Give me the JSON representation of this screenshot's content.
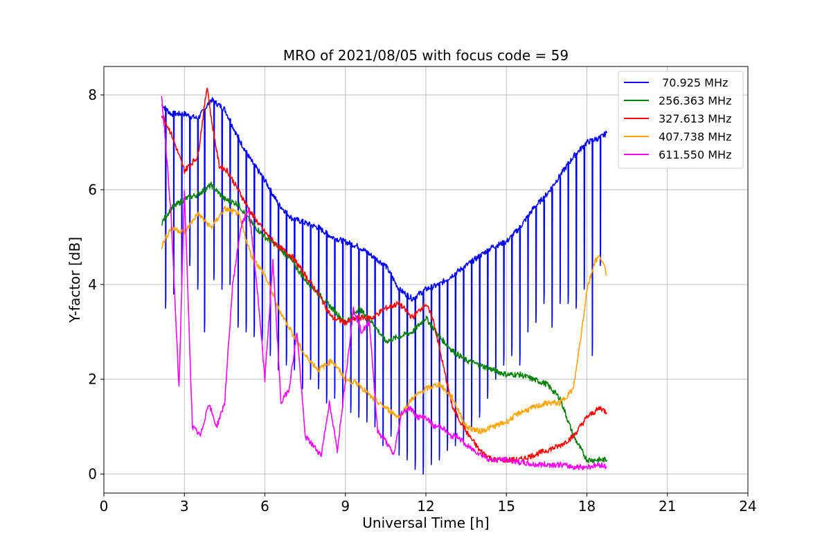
{
  "chart_data": {
    "type": "line",
    "title": "MRO of 2021/08/05 with focus code = 59",
    "xlabel": "Universal Time [h]",
    "ylabel": "Y-factor [dB]",
    "xlim": [
      0,
      24
    ],
    "ylim": [
      -0.4,
      8.6
    ],
    "xticks": [
      0,
      3,
      6,
      9,
      12,
      15,
      18,
      21,
      24
    ],
    "yticks": [
      0,
      2,
      4,
      6,
      8
    ],
    "grid": true,
    "legend_position": "top-right",
    "series": [
      {
        "name": " 70.925 MHz",
        "color": "#0000ff",
        "x": [
          2.15,
          2.5,
          3.0,
          3.5,
          4.0,
          4.5,
          5.0,
          5.5,
          6.0,
          6.5,
          7.0,
          7.5,
          8.0,
          8.5,
          9.0,
          9.5,
          10.0,
          10.5,
          11.0,
          11.5,
          12.0,
          12.5,
          13.0,
          13.5,
          14.0,
          14.5,
          15.0,
          15.5,
          16.0,
          16.5,
          17.0,
          17.5,
          18.0,
          18.5,
          18.75
        ],
        "y": [
          7.8,
          7.6,
          7.6,
          7.5,
          7.9,
          7.7,
          7.1,
          6.6,
          6.2,
          5.7,
          5.4,
          5.3,
          5.2,
          5.0,
          4.9,
          4.8,
          4.6,
          4.4,
          3.9,
          3.7,
          3.9,
          4.0,
          4.2,
          4.4,
          4.6,
          4.8,
          4.9,
          5.2,
          5.6,
          5.9,
          6.3,
          6.7,
          7.0,
          7.1,
          7.2
        ],
        "dips": [
          [
            2.3,
            3.5
          ],
          [
            2.6,
            3.8
          ],
          [
            2.9,
            4.0
          ],
          [
            3.2,
            4.4
          ],
          [
            3.5,
            3.9
          ],
          [
            3.75,
            3.0
          ],
          [
            4.1,
            4.1
          ],
          [
            4.4,
            3.9
          ],
          [
            4.7,
            4.0
          ],
          [
            5.0,
            3.1
          ],
          [
            5.3,
            3.0
          ],
          [
            5.6,
            2.9
          ],
          [
            5.9,
            2.8
          ],
          [
            6.2,
            2.5
          ],
          [
            6.5,
            2.2
          ],
          [
            6.8,
            2.3
          ],
          [
            7.1,
            2.2
          ],
          [
            7.4,
            1.8
          ],
          [
            7.7,
            2.0
          ],
          [
            8.0,
            1.8
          ],
          [
            8.3,
            1.5
          ],
          [
            8.6,
            1.6
          ],
          [
            8.9,
            1.4
          ],
          [
            9.2,
            1.3
          ],
          [
            9.5,
            1.2
          ],
          [
            9.8,
            1.1
          ],
          [
            10.1,
            1.0
          ],
          [
            10.4,
            0.6
          ],
          [
            10.7,
            0.8
          ],
          [
            11.0,
            0.4
          ],
          [
            11.3,
            0.3
          ],
          [
            11.6,
            0.1
          ],
          [
            11.9,
            0.0
          ],
          [
            12.2,
            0.2
          ],
          [
            12.5,
            0.3
          ],
          [
            12.8,
            0.5
          ],
          [
            13.1,
            0.6
          ],
          [
            13.4,
            0.7
          ],
          [
            13.7,
            1.0
          ],
          [
            14.0,
            1.2
          ],
          [
            14.3,
            1.6
          ],
          [
            14.6,
            2.0
          ],
          [
            14.9,
            2.3
          ],
          [
            15.2,
            2.5
          ],
          [
            15.5,
            2.3
          ],
          [
            15.8,
            3.0
          ],
          [
            16.1,
            3.2
          ],
          [
            16.4,
            3.6
          ],
          [
            16.7,
            3.1
          ],
          [
            17.0,
            3.6
          ],
          [
            17.3,
            3.6
          ],
          [
            17.6,
            3.5
          ],
          [
            17.9,
            3.9
          ],
          [
            18.2,
            2.5
          ],
          [
            18.5,
            4.4
          ]
        ]
      },
      {
        "name": "256.363 MHz",
        "color": "#008000",
        "x": [
          2.15,
          2.5,
          3.0,
          3.5,
          4.0,
          4.5,
          5.0,
          5.5,
          6.0,
          6.5,
          7.0,
          7.5,
          8.0,
          8.5,
          9.0,
          9.5,
          10.0,
          10.5,
          11.0,
          11.5,
          12.0,
          12.5,
          13.0,
          13.5,
          14.0,
          14.5,
          15.0,
          15.5,
          16.0,
          16.5,
          17.0,
          17.5,
          18.0,
          18.5,
          18.75
        ],
        "y": [
          5.3,
          5.6,
          5.8,
          5.9,
          6.1,
          5.8,
          5.7,
          5.3,
          5.0,
          4.8,
          4.5,
          4.1,
          3.8,
          3.5,
          3.2,
          3.5,
          3.2,
          2.8,
          2.9,
          3.0,
          3.3,
          2.9,
          2.6,
          2.4,
          2.3,
          2.2,
          2.1,
          2.1,
          2.0,
          1.9,
          1.6,
          0.8,
          0.3,
          0.3,
          0.3
        ]
      },
      {
        "name": "327.613 MHz",
        "color": "#ff0000",
        "x": [
          2.15,
          2.5,
          3.0,
          3.5,
          3.85,
          4.0,
          4.3,
          4.6,
          5.0,
          5.5,
          6.0,
          6.5,
          7.0,
          7.5,
          8.0,
          8.5,
          9.0,
          9.5,
          10.0,
          10.5,
          11.0,
          11.5,
          12.0,
          12.3,
          12.6,
          13.0,
          13.5,
          14.0,
          14.5,
          15.0,
          15.5,
          16.0,
          16.5,
          17.0,
          17.5,
          18.0,
          18.5,
          18.75
        ],
        "y": [
          7.6,
          7.2,
          6.4,
          6.7,
          8.2,
          7.5,
          6.5,
          6.4,
          6.0,
          5.5,
          5.1,
          4.8,
          4.6,
          4.2,
          3.8,
          3.3,
          3.2,
          3.3,
          3.3,
          3.5,
          3.6,
          3.3,
          3.6,
          3.2,
          2.4,
          1.4,
          0.9,
          0.5,
          0.3,
          0.3,
          0.3,
          0.4,
          0.5,
          0.6,
          0.8,
          1.2,
          1.4,
          1.3
        ]
      },
      {
        "name": "407.738 MHz",
        "color": "#ffa500",
        "x": [
          2.15,
          2.5,
          3.0,
          3.5,
          4.0,
          4.5,
          5.0,
          5.5,
          6.0,
          6.5,
          7.0,
          7.5,
          8.0,
          8.5,
          9.0,
          9.5,
          10.0,
          10.5,
          11.0,
          11.5,
          12.0,
          12.5,
          13.0,
          13.5,
          14.0,
          14.5,
          15.0,
          15.5,
          16.0,
          16.5,
          17.0,
          17.5,
          17.8,
          18.0,
          18.3,
          18.5,
          18.75
        ],
        "y": [
          4.8,
          5.2,
          5.1,
          5.5,
          5.2,
          5.6,
          5.5,
          4.6,
          4.2,
          3.5,
          3.0,
          2.5,
          2.2,
          2.4,
          2.0,
          1.9,
          1.6,
          1.4,
          1.2,
          1.6,
          1.8,
          1.9,
          1.6,
          1.0,
          0.9,
          1.0,
          1.1,
          1.3,
          1.4,
          1.5,
          1.5,
          1.8,
          3.0,
          3.9,
          4.5,
          4.6,
          4.2
        ]
      },
      {
        "name": "611.550 MHz",
        "color": "#ff00ff",
        "x": [
          2.15,
          2.3,
          2.5,
          2.8,
          3.0,
          3.3,
          3.6,
          3.9,
          4.2,
          4.5,
          4.8,
          5.1,
          5.4,
          5.7,
          6.0,
          6.3,
          6.6,
          6.9,
          7.2,
          7.5,
          7.8,
          8.1,
          8.4,
          8.7,
          9.0,
          9.3,
          9.6,
          9.9,
          10.2,
          10.5,
          10.8,
          11.1,
          11.4,
          11.7,
          12.0,
          12.3,
          12.6,
          12.9,
          13.2,
          13.5,
          13.8,
          14.1,
          14.4,
          14.7,
          15.0,
          15.5,
          16.0,
          16.5,
          17.0,
          17.5,
          18.0,
          18.5,
          18.75
        ],
        "y": [
          8.0,
          7.0,
          5.5,
          1.8,
          6.0,
          1.0,
          0.8,
          1.5,
          1.0,
          1.5,
          4.0,
          5.2,
          5.6,
          4.0,
          2.0,
          4.5,
          1.5,
          1.8,
          3.0,
          0.8,
          0.6,
          0.4,
          1.5,
          0.5,
          2.0,
          3.5,
          3.0,
          3.2,
          0.9,
          0.7,
          0.4,
          1.3,
          1.4,
          1.2,
          1.2,
          1.0,
          1.0,
          0.8,
          0.8,
          0.6,
          0.5,
          0.4,
          0.3,
          0.3,
          0.3,
          0.25,
          0.2,
          0.2,
          0.2,
          0.15,
          0.15,
          0.2,
          0.15
        ]
      }
    ]
  }
}
